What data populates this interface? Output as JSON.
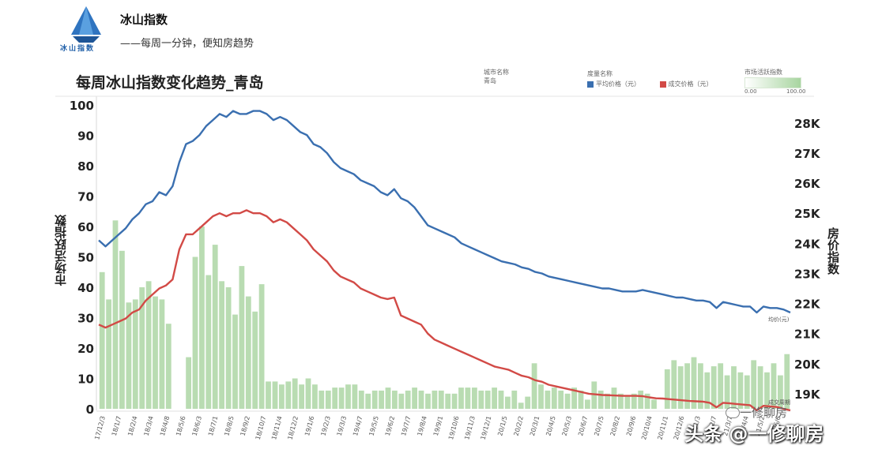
{
  "header": {
    "brand": "冰山指数",
    "slogan": "——每周一分钟，便知房趋势",
    "logo_text": "冰山指数"
  },
  "chart_data": {
    "type": "line",
    "title": "每周冰山指数变化趋势_青岛",
    "ylabel": "市场活跃指数",
    "y2label": "房价指数",
    "ylim": [
      0,
      100
    ],
    "y2lim": [
      18500,
      28600
    ],
    "yticks": [
      "0",
      "10",
      "20",
      "30",
      "40",
      "50",
      "60",
      "70",
      "80",
      "90",
      "100"
    ],
    "y2ticks": [
      "19K",
      "20K",
      "21K",
      "22K",
      "23K",
      "24K",
      "25K",
      "26K",
      "27K",
      "28K"
    ],
    "series": [
      {
        "key": "blue",
        "color": "#3a6fb0",
        "values": [
          24.1,
          23.9,
          24.1,
          24.3,
          24.5,
          24.8,
          25.0,
          25.3,
          25.4,
          25.7,
          25.6,
          25.9,
          26.7,
          27.3,
          27.4,
          27.6,
          27.9,
          28.1,
          28.3,
          28.2,
          28.4,
          28.3,
          28.3,
          28.4,
          28.4,
          28.3,
          28.1,
          28.2,
          28.1,
          27.9,
          27.7,
          27.6,
          27.3,
          27.2,
          27.0,
          26.7,
          26.5,
          26.4,
          26.3,
          26.1,
          26.0,
          25.9,
          25.7,
          25.6,
          25.8,
          25.5,
          25.4,
          25.2,
          24.9,
          24.6,
          24.5,
          24.4,
          24.3,
          24.2,
          24.0,
          23.9,
          23.8,
          23.7,
          23.6,
          23.5,
          23.4,
          23.35,
          23.3,
          23.2,
          23.15,
          23.05,
          23.0,
          22.9,
          22.85,
          22.8,
          22.75,
          22.7,
          22.65,
          22.6,
          22.55,
          22.5,
          22.5,
          22.45,
          22.4,
          22.4,
          22.4,
          22.45,
          22.4,
          22.35,
          22.3,
          22.25,
          22.2,
          22.2,
          22.15,
          22.1,
          22.1,
          22.05,
          21.85,
          22.05,
          22.0,
          21.95,
          21.9,
          21.9,
          21.7,
          21.9,
          21.85,
          21.85,
          21.8,
          21.7
        ]
      },
      {
        "key": "red",
        "color": "#d24a46",
        "values": [
          21.3,
          21.2,
          21.3,
          21.4,
          21.5,
          21.7,
          21.8,
          22.1,
          22.3,
          22.5,
          22.6,
          22.8,
          23.8,
          24.3,
          24.3,
          24.5,
          24.7,
          24.9,
          25.0,
          24.9,
          25.0,
          25.0,
          25.1,
          25.0,
          25.0,
          24.9,
          24.7,
          24.8,
          24.7,
          24.5,
          24.3,
          24.1,
          23.8,
          23.6,
          23.4,
          23.1,
          22.9,
          22.8,
          22.7,
          22.5,
          22.4,
          22.3,
          22.2,
          22.15,
          22.2,
          21.6,
          21.5,
          21.4,
          21.3,
          21.0,
          20.8,
          20.7,
          20.6,
          20.5,
          20.4,
          20.3,
          20.2,
          20.1,
          20.0,
          19.9,
          19.85,
          19.8,
          19.7,
          19.6,
          19.55,
          19.45,
          19.4,
          19.3,
          19.25,
          19.2,
          19.15,
          19.1,
          19.05,
          19.0,
          18.98,
          18.96,
          18.95,
          18.94,
          18.93,
          18.93,
          18.93,
          18.92,
          18.88,
          18.85,
          18.84,
          18.82,
          18.8,
          18.78,
          18.76,
          18.75,
          18.74,
          18.7,
          18.55,
          18.7,
          18.68,
          18.66,
          18.64,
          18.62,
          18.45,
          18.6,
          18.58,
          18.56,
          18.5,
          18.45
        ]
      }
    ],
    "bars_color": "#b9dcb2",
    "bars": [
      45,
      36,
      62,
      52,
      35,
      36,
      40,
      42,
      37,
      36,
      28,
      0,
      0,
      17,
      50,
      60,
      44,
      54,
      42,
      40,
      31,
      47,
      37,
      32,
      41,
      9,
      9,
      8,
      9,
      10,
      8,
      10,
      8,
      6,
      6,
      7,
      7,
      8,
      8,
      6,
      5,
      6,
      6,
      7,
      6,
      5,
      6,
      7,
      6,
      5,
      6,
      6,
      5,
      5,
      7,
      7,
      7,
      6,
      6,
      7,
      6,
      4,
      6,
      2,
      4,
      15,
      8,
      6,
      7,
      6,
      5,
      7,
      6,
      3,
      9,
      6,
      5,
      7,
      5,
      4,
      5,
      6,
      5,
      3,
      0,
      13,
      16,
      14,
      15,
      17,
      15,
      12,
      14,
      15,
      11,
      14,
      12,
      11,
      16,
      14,
      12,
      15,
      11,
      18
    ],
    "x_tick_labels": [
      "17/12/3",
      "18/1/7",
      "18/2/4",
      "18/3/4",
      "18/4/8",
      "18/5/6",
      "18/6/3",
      "18/7/1",
      "18/8/5",
      "18/9/2",
      "18/10/7",
      "18/11/4",
      "18/12/2",
      "19/1/6",
      "19/2/3",
      "19/3/3",
      "19/4/7",
      "19/5/5",
      "19/6/2",
      "19/7/7",
      "19/8/4",
      "19/9/1",
      "19/10/6",
      "19/11/3",
      "19/12/1",
      "20/1/5",
      "20/2/2",
      "20/3/1",
      "20/4/5",
      "20/5/3",
      "20/6/7",
      "20/7/5",
      "20/8/2",
      "20/9/6",
      "20/10/4",
      "20/11/1",
      "20/12/6",
      "21/1/3",
      "21/2/7",
      "21/3/7",
      "21/4/4",
      "21/5/2",
      "21/6/6"
    ],
    "end_labels": {
      "blue": "均价(元)",
      "bars": "成交周期"
    }
  },
  "legend": {
    "city_label": "城市名称",
    "city_value": "青岛",
    "line_title": "度量名称",
    "line_items": [
      {
        "key": "blue",
        "label": "平均价格（元）",
        "color": "#3a6fb0"
      },
      {
        "key": "red",
        "label": "成交价格（元）",
        "color": "#d24a46"
      }
    ],
    "bars_title": "市场活跃指数",
    "bars_min": "0.00",
    "bars_max": "100.00"
  },
  "watermark": {
    "small": "一修聊房",
    "big": "头条 @一修聊房"
  }
}
